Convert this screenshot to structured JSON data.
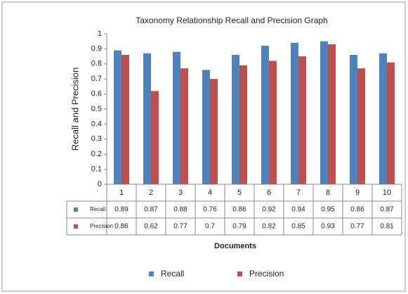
{
  "chart_data": {
    "type": "bar",
    "title": "Taxonomy Relationship Recall and Precision Graph",
    "y_label": "Recall and Precision",
    "x_label": "Documents",
    "categories": [
      "1",
      "2",
      "3",
      "4",
      "5",
      "6",
      "7",
      "8",
      "9",
      "10"
    ],
    "series": [
      {
        "name": "Recall",
        "color": "#4f81bd",
        "values": [
          0.89,
          0.87,
          0.88,
          0.76,
          0.86,
          0.92,
          0.94,
          0.95,
          0.86,
          0.87
        ]
      },
      {
        "name": "Precision",
        "color": "#c0504d",
        "values": [
          0.86,
          0.62,
          0.77,
          0.7,
          0.79,
          0.82,
          0.85,
          0.93,
          0.77,
          0.81
        ]
      }
    ],
    "ylim": [
      0,
      1
    ],
    "yticks": [
      0,
      0.1,
      0.2,
      0.3,
      0.4,
      0.5,
      0.6,
      0.7,
      0.8,
      0.9,
      1
    ],
    "legend": "bottom"
  }
}
